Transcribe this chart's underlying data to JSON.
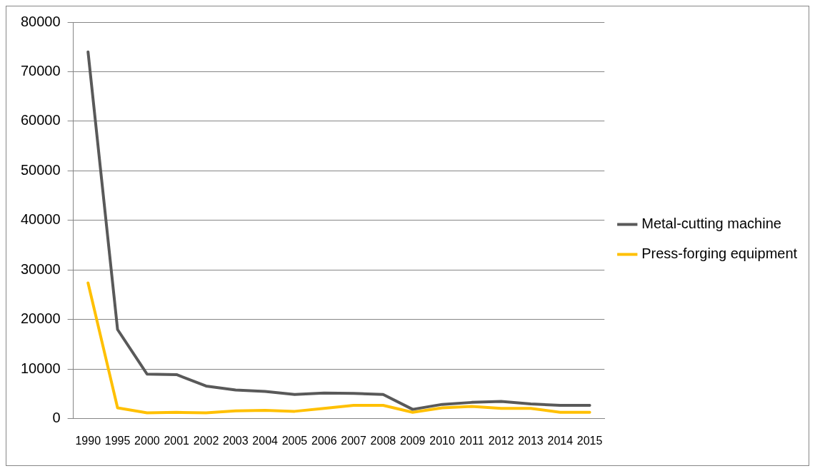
{
  "chart_data": {
    "type": "line",
    "categories": [
      "1990",
      "1995",
      "2000",
      "2001",
      "2002",
      "2003",
      "2004",
      "2005",
      "2006",
      "2007",
      "2008",
      "2009",
      "2010",
      "2011",
      "2012",
      "2013",
      "2014",
      "2015"
    ],
    "series": [
      {
        "name": "Metal-cutting machine",
        "color": "#595959",
        "values": [
          74000,
          18000,
          9000,
          8900,
          6600,
          5800,
          5500,
          4900,
          5200,
          5100,
          4900,
          1900,
          2900,
          3300,
          3500,
          3000,
          2700,
          2700
        ]
      },
      {
        "name": "Press-forging equipment",
        "color": "#ffc000",
        "values": [
          27400,
          2200,
          1200,
          1300,
          1200,
          1600,
          1700,
          1500,
          2100,
          2700,
          2700,
          1300,
          2200,
          2500,
          2100,
          2100,
          1300,
          1300
        ]
      }
    ],
    "ylim": [
      0,
      80000
    ],
    "yticks": [
      0,
      10000,
      20000,
      30000,
      40000,
      50000,
      60000,
      70000,
      80000
    ],
    "grid": "y",
    "legend": "right",
    "marker": "none",
    "line_style": "solid"
  }
}
